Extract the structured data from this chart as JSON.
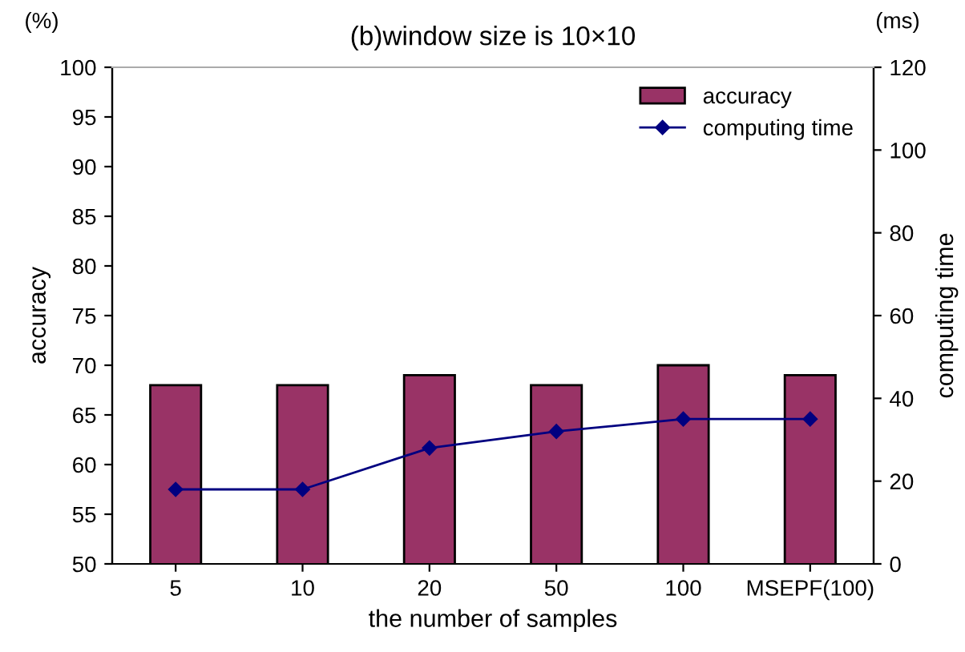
{
  "chart_data": {
    "type": "bar",
    "title": "(b)window size is 10×10",
    "xlabel": "the number of samples",
    "ylabel": "accuracy",
    "y2label": "computing time",
    "annotations": [
      "(%)",
      "(ms)"
    ],
    "categories": [
      "5",
      "10",
      "20",
      "50",
      "100",
      "MSEPF(100)"
    ],
    "series": [
      {
        "name": "accuracy",
        "color": "#993366",
        "values": [
          68,
          68,
          69,
          68,
          70,
          69
        ]
      },
      {
        "name": "computing time",
        "type": "line",
        "axis": "y2",
        "color": "#000080",
        "marker": "diamond",
        "values": [
          18,
          18,
          28,
          32,
          35,
          35
        ]
      }
    ],
    "ylim": [
      50,
      100
    ],
    "yticks": [
      50,
      55,
      60,
      65,
      70,
      75,
      80,
      85,
      90,
      95,
      100
    ],
    "y2lim": [
      0,
      120
    ],
    "y2ticks": [
      0,
      20,
      40,
      60,
      80,
      100,
      120
    ],
    "grid": false,
    "legend": "top right"
  }
}
